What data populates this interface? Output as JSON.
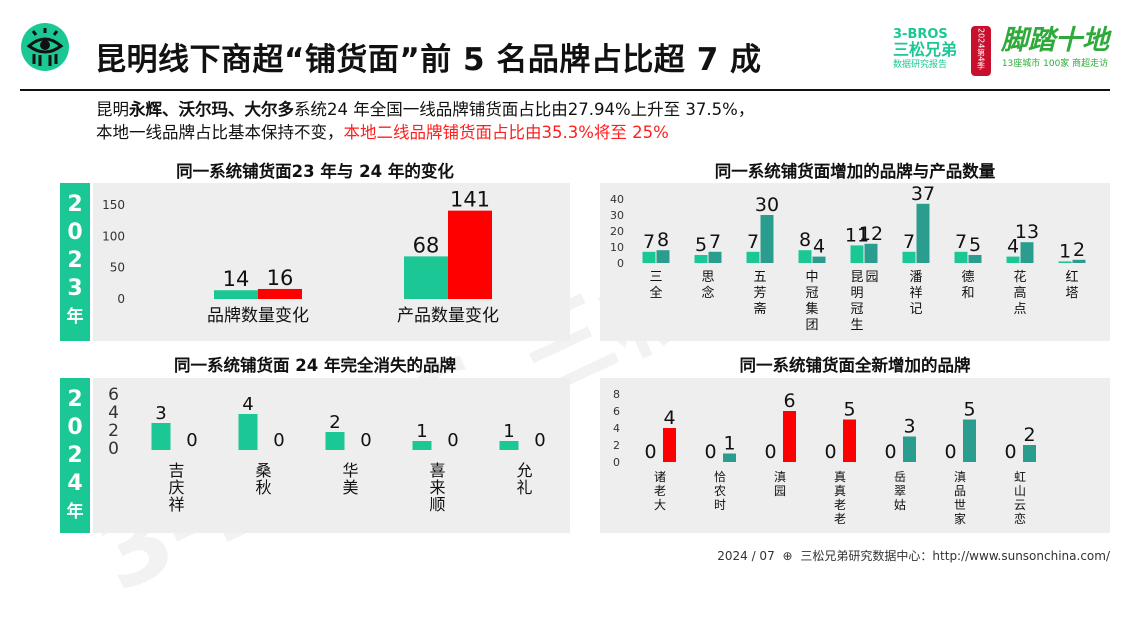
{
  "header": {
    "title": "昆明线下商超“铺货面”前 5 名品牌占比超 7 成",
    "brand_en": "3-BROS",
    "brand_cn": "三松兄弟",
    "brand_sub": "数据研究报告",
    "badge": "2024第4季",
    "slogan": "脚踏十地",
    "slogan_sub": "13座城市 100家 商超走访"
  },
  "summary": {
    "line1_prefix": "昆明",
    "line1_bold": "永辉、沃尔玛、大尔多",
    "line1_rest": "系统24 年全国一线品牌铺货面占比由27.94%上升至 37.5%，",
    "line2_normal": "本地一线品牌占比基本保持不变，",
    "line2_red": "本地二线品牌铺货面占比由35.3%将至 25%"
  },
  "years": {
    "y2023": [
      "2",
      "0",
      "2",
      "3",
      "年"
    ],
    "y2024": [
      "2",
      "0",
      "2",
      "4",
      "年"
    ]
  },
  "watermark": "3-BROS 三松兄弟",
  "colors": {
    "green": "#1bc895",
    "red": "#ff0000",
    "teal": "#2a9d8f",
    "bg": "#eeeeee"
  },
  "footer": {
    "date": "2024 / 07",
    "source": "三松兄弟研究数据中心：http://www.sunsonchina.com/"
  },
  "chart_data": [
    {
      "id": "change",
      "type": "bar",
      "title": "同一系统铺货面23 年与 24 年的变化",
      "categories": [
        "品牌数量变化",
        "产品数量变化"
      ],
      "series": [
        {
          "values": [
            14,
            68
          ]
        },
        {
          "values": [
            16,
            141
          ]
        }
      ],
      "ylim": [
        0,
        150
      ],
      "yticks": [
        "150",
        "100",
        "50",
        "0"
      ]
    },
    {
      "id": "added",
      "type": "bar",
      "title": "同一系统铺货面增加的品牌与产品数量",
      "categories": [
        "三全",
        "思念",
        "五芳斋",
        "中冠集团",
        "昆明冠生园",
        "潘祥记",
        "德和",
        "花高点",
        "红塔"
      ],
      "series": [
        {
          "values": [
            7,
            5,
            7,
            8,
            11,
            7,
            7,
            4,
            1
          ]
        },
        {
          "values": [
            8,
            7,
            30,
            4,
            12,
            37,
            5,
            13,
            2
          ]
        }
      ],
      "ylim": [
        0,
        40
      ],
      "yticks": [
        "40",
        "30",
        "20",
        "10",
        "0"
      ]
    },
    {
      "id": "disappeared",
      "type": "bar",
      "title": "同一系统铺货面 24 年完全消失的品牌",
      "categories": [
        "吉庆祥",
        "桑秋",
        "华美",
        "喜来顺",
        "允礼"
      ],
      "series": [
        {
          "values": [
            3,
            4,
            2,
            1,
            1
          ]
        },
        {
          "values": [
            0,
            0,
            0,
            0,
            0
          ]
        }
      ],
      "ylim": [
        0,
        6
      ],
      "yticks": [
        "6",
        "4",
        "2",
        "0"
      ]
    },
    {
      "id": "new",
      "type": "bar",
      "title": "同一系统铺货面全新增加的品牌",
      "categories": [
        "诸老大",
        "恰农时",
        "滇园",
        "真真老老",
        "岳翠姑",
        "滇品世家",
        "虹山云恋"
      ],
      "series": [
        {
          "values": [
            0,
            0,
            0,
            0,
            0,
            0,
            0
          ]
        },
        {
          "values": [
            4,
            1,
            6,
            5,
            3,
            5,
            2
          ]
        }
      ],
      "ylim": [
        0,
        8
      ],
      "yticks": [
        "8",
        "6",
        "4",
        "2",
        "0"
      ]
    }
  ]
}
